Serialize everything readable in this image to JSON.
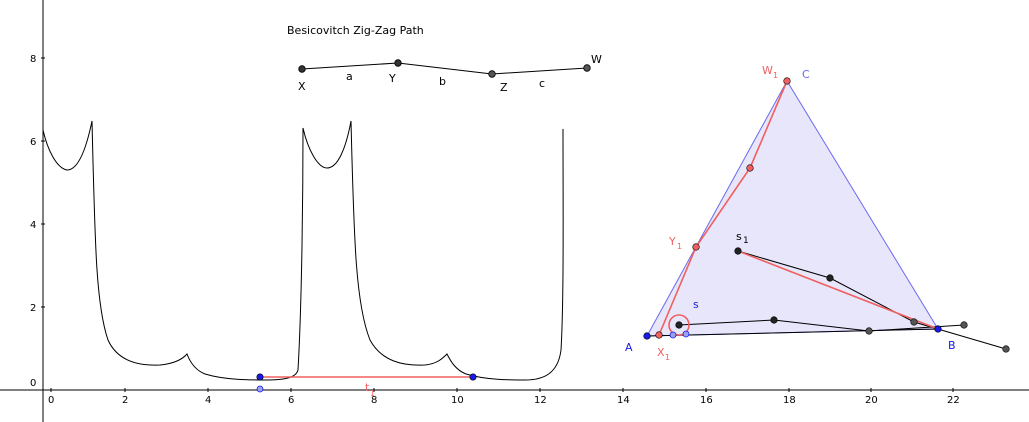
{
  "title": "Besicovitch Zig-Zag Path",
  "axes": {
    "x_ticks": [
      "0",
      "2",
      "4",
      "6",
      "8",
      "10",
      "12",
      "14",
      "16",
      "18",
      "20",
      "22"
    ],
    "y_ticks": [
      "0",
      "2",
      "4",
      "6",
      "8"
    ]
  },
  "zigzag": {
    "points": [
      "X",
      "Y",
      "Z",
      "W"
    ],
    "segments": [
      "a",
      "b",
      "c"
    ]
  },
  "triangle": {
    "vertices": {
      "A": "A",
      "B": "B",
      "C": "C"
    },
    "labels": {
      "W1": "W",
      "Y1": "Y",
      "X1": "X",
      "s1": "s",
      "s": "s",
      "sub1": "1"
    },
    "fill": "#e8e6fb",
    "edge_color": "#6a6af0"
  },
  "bottom_segment_label": "t",
  "colors": {
    "red": "#f06060",
    "blue": "#1a1ae6",
    "black": "#000000",
    "gray_point": "#444444"
  }
}
